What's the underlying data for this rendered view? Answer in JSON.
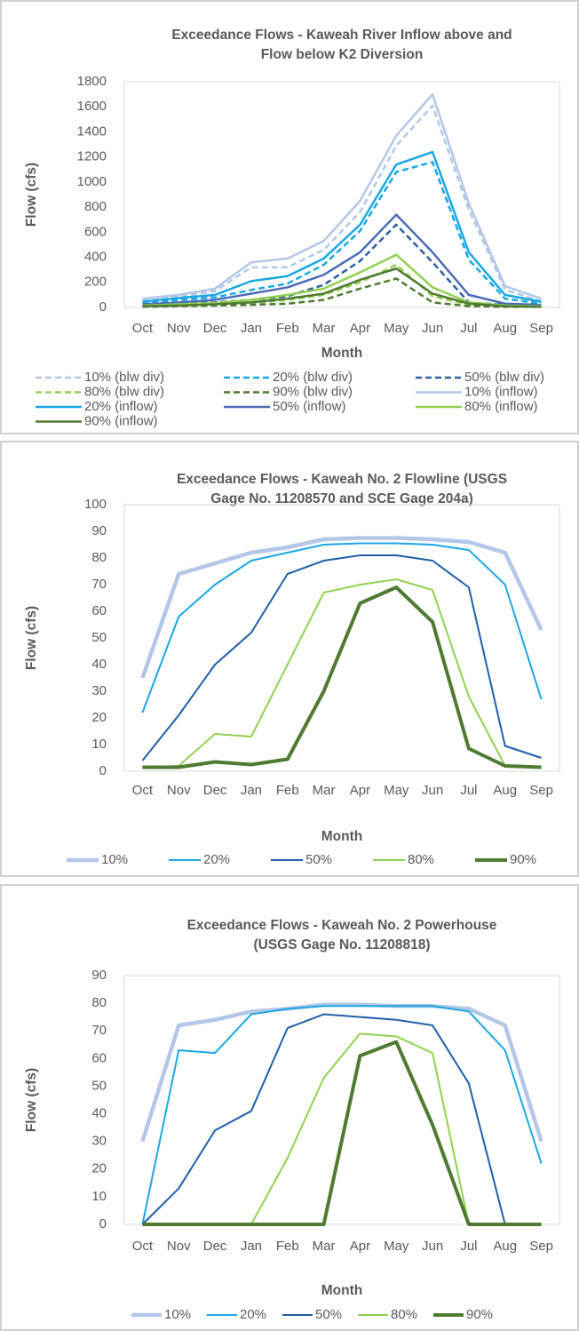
{
  "chart_data": [
    {
      "type": "line",
      "title": [
        "Exceedance Flows - Kaweah River Inflow above and",
        "Flow below K2 Diversion"
      ],
      "xlabel": "Month",
      "ylabel": "Flow (cfs)",
      "categories": [
        "Oct",
        "Nov",
        "Dec",
        "Jan",
        "Feb",
        "Mar",
        "Apr",
        "May",
        "Jun",
        "Jul",
        "Aug",
        "Sep"
      ],
      "ylim": [
        0,
        1800
      ],
      "yticks": [
        0,
        200,
        400,
        600,
        800,
        1000,
        1200,
        1400,
        1600,
        1800
      ],
      "grid": false,
      "series": [
        {
          "name": "10% (blw div)",
          "color": "#b4c7e7",
          "dashed": true,
          "width": 2.5,
          "values": [
            55,
            85,
            130,
            320,
            320,
            460,
            760,
            1290,
            1610,
            780,
            140,
            50
          ]
        },
        {
          "name": "20% (blw div)",
          "color": "#1aa7e3",
          "dashed": true,
          "width": 2.5,
          "values": [
            30,
            60,
            80,
            140,
            190,
            340,
            610,
            1080,
            1160,
            380,
            70,
            30
          ]
        },
        {
          "name": "50% (blw div)",
          "color": "#2e5f9e",
          "dashed": true,
          "width": 2.5,
          "values": [
            15,
            30,
            40,
            60,
            90,
            180,
            370,
            660,
            360,
            40,
            20,
            10
          ]
        },
        {
          "name": "80% (blw div)",
          "color": "#92d050",
          "dashed": true,
          "width": 2.5,
          "values": [
            10,
            15,
            20,
            30,
            60,
            100,
            200,
            340,
            90,
            20,
            10,
            5
          ]
        },
        {
          "name": "90% (blw div)",
          "color": "#4f7a32",
          "dashed": true,
          "width": 2.5,
          "values": [
            5,
            10,
            15,
            20,
            30,
            60,
            150,
            230,
            40,
            10,
            5,
            5
          ]
        },
        {
          "name": "10% (inflow)",
          "color": "#b4c7e7",
          "dashed": false,
          "width": 2.5,
          "values": [
            70,
            100,
            150,
            360,
            390,
            530,
            850,
            1370,
            1700,
            830,
            170,
            70
          ]
        },
        {
          "name": "20% (inflow)",
          "color": "#1aa7e3",
          "dashed": false,
          "width": 2.5,
          "values": [
            45,
            75,
            100,
            210,
            250,
            390,
            660,
            1140,
            1240,
            440,
            100,
            45
          ]
        },
        {
          "name": "50% (inflow)",
          "color": "#4b6cb7",
          "dashed": false,
          "width": 2.5,
          "values": [
            25,
            40,
            60,
            110,
            160,
            260,
            440,
            740,
            440,
            100,
            30,
            20
          ]
        },
        {
          "name": "80% (inflow)",
          "color": "#92d050",
          "dashed": false,
          "width": 2.5,
          "values": [
            15,
            25,
            35,
            60,
            100,
            150,
            280,
            420,
            160,
            40,
            15,
            10
          ]
        },
        {
          "name": "90% (inflow)",
          "color": "#4f7a32",
          "dashed": false,
          "width": 2.5,
          "values": [
            10,
            15,
            25,
            40,
            70,
            110,
            220,
            310,
            110,
            30,
            10,
            5
          ]
        }
      ]
    },
    {
      "type": "line",
      "title": [
        "Exceedance Flows - Kaweah No. 2 Flowline (USGS",
        "Gage No. 11208570 and SCE Gage 204a)"
      ],
      "xlabel": "Month",
      "ylabel": "Flow (cfs)",
      "categories": [
        "Oct",
        "Nov",
        "Dec",
        "Jan",
        "Feb",
        "Mar",
        "Apr",
        "May",
        "Jun",
        "Jul",
        "Aug",
        "Sep"
      ],
      "ylim": [
        0,
        100
      ],
      "yticks": [
        0,
        10,
        20,
        30,
        40,
        50,
        60,
        70,
        80,
        90,
        100
      ],
      "grid": false,
      "series": [
        {
          "name": "10%",
          "color": "#b4c7e7",
          "dashed": false,
          "width": 4.5,
          "values": [
            35,
            74,
            78,
            82,
            84,
            87,
            87.5,
            87.5,
            87,
            86,
            82,
            53
          ]
        },
        {
          "name": "20%",
          "color": "#1aa7e3",
          "dashed": false,
          "width": 2,
          "values": [
            22,
            58,
            70,
            79,
            82,
            85,
            85.5,
            85.5,
            85,
            83,
            70,
            27
          ]
        },
        {
          "name": "50%",
          "color": "#1f5fa8",
          "dashed": false,
          "width": 2,
          "values": [
            4,
            21,
            40,
            52,
            74,
            79,
            81,
            81,
            79,
            69,
            9.5,
            5
          ]
        },
        {
          "name": "80%",
          "color": "#92d050",
          "dashed": false,
          "width": 2,
          "values": [
            1.5,
            2,
            14,
            13,
            40,
            67,
            70,
            72,
            68,
            28,
            2,
            1.5
          ]
        },
        {
          "name": "90%",
          "color": "#4f7a32",
          "dashed": false,
          "width": 4,
          "values": [
            1.5,
            1.5,
            3.5,
            2.5,
            4.5,
            30,
            63,
            69,
            56,
            8.5,
            2,
            1.5
          ]
        }
      ]
    },
    {
      "type": "line",
      "title": [
        "Exceedance Flows - Kaweah No. 2 Powerhouse",
        "(USGS Gage No. 11208818)"
      ],
      "xlabel": "Month",
      "ylabel": "Flow (cfs)",
      "categories": [
        "Oct",
        "Nov",
        "Dec",
        "Jan",
        "Feb",
        "Mar",
        "Apr",
        "May",
        "Jun",
        "Jul",
        "Aug",
        "Sep"
      ],
      "ylim": [
        0,
        90
      ],
      "yticks": [
        0,
        10,
        20,
        30,
        40,
        50,
        60,
        70,
        80,
        90
      ],
      "grid": false,
      "series": [
        {
          "name": "10%",
          "color": "#b4c7e7",
          "dashed": false,
          "width": 4.5,
          "values": [
            30,
            72,
            74,
            77,
            78,
            79.5,
            79.5,
            79,
            79,
            78,
            72,
            30
          ]
        },
        {
          "name": "20%",
          "color": "#1aa7e3",
          "dashed": false,
          "width": 2,
          "values": [
            0,
            63,
            62,
            76,
            78,
            79,
            79,
            79,
            79,
            77,
            63,
            22
          ]
        },
        {
          "name": "50%",
          "color": "#1f5fa8",
          "dashed": false,
          "width": 2,
          "values": [
            0,
            13,
            34,
            41,
            71,
            76,
            75,
            74,
            72,
            51,
            0,
            0
          ]
        },
        {
          "name": "80%",
          "color": "#92d050",
          "dashed": false,
          "width": 2,
          "values": [
            0,
            0,
            0,
            0,
            24,
            53,
            69,
            68,
            62,
            0,
            0,
            0
          ]
        },
        {
          "name": "90%",
          "color": "#4f7a32",
          "dashed": false,
          "width": 4,
          "values": [
            0,
            0,
            0,
            0,
            0,
            0,
            61,
            66,
            36,
            0,
            0,
            0
          ]
        }
      ]
    }
  ]
}
